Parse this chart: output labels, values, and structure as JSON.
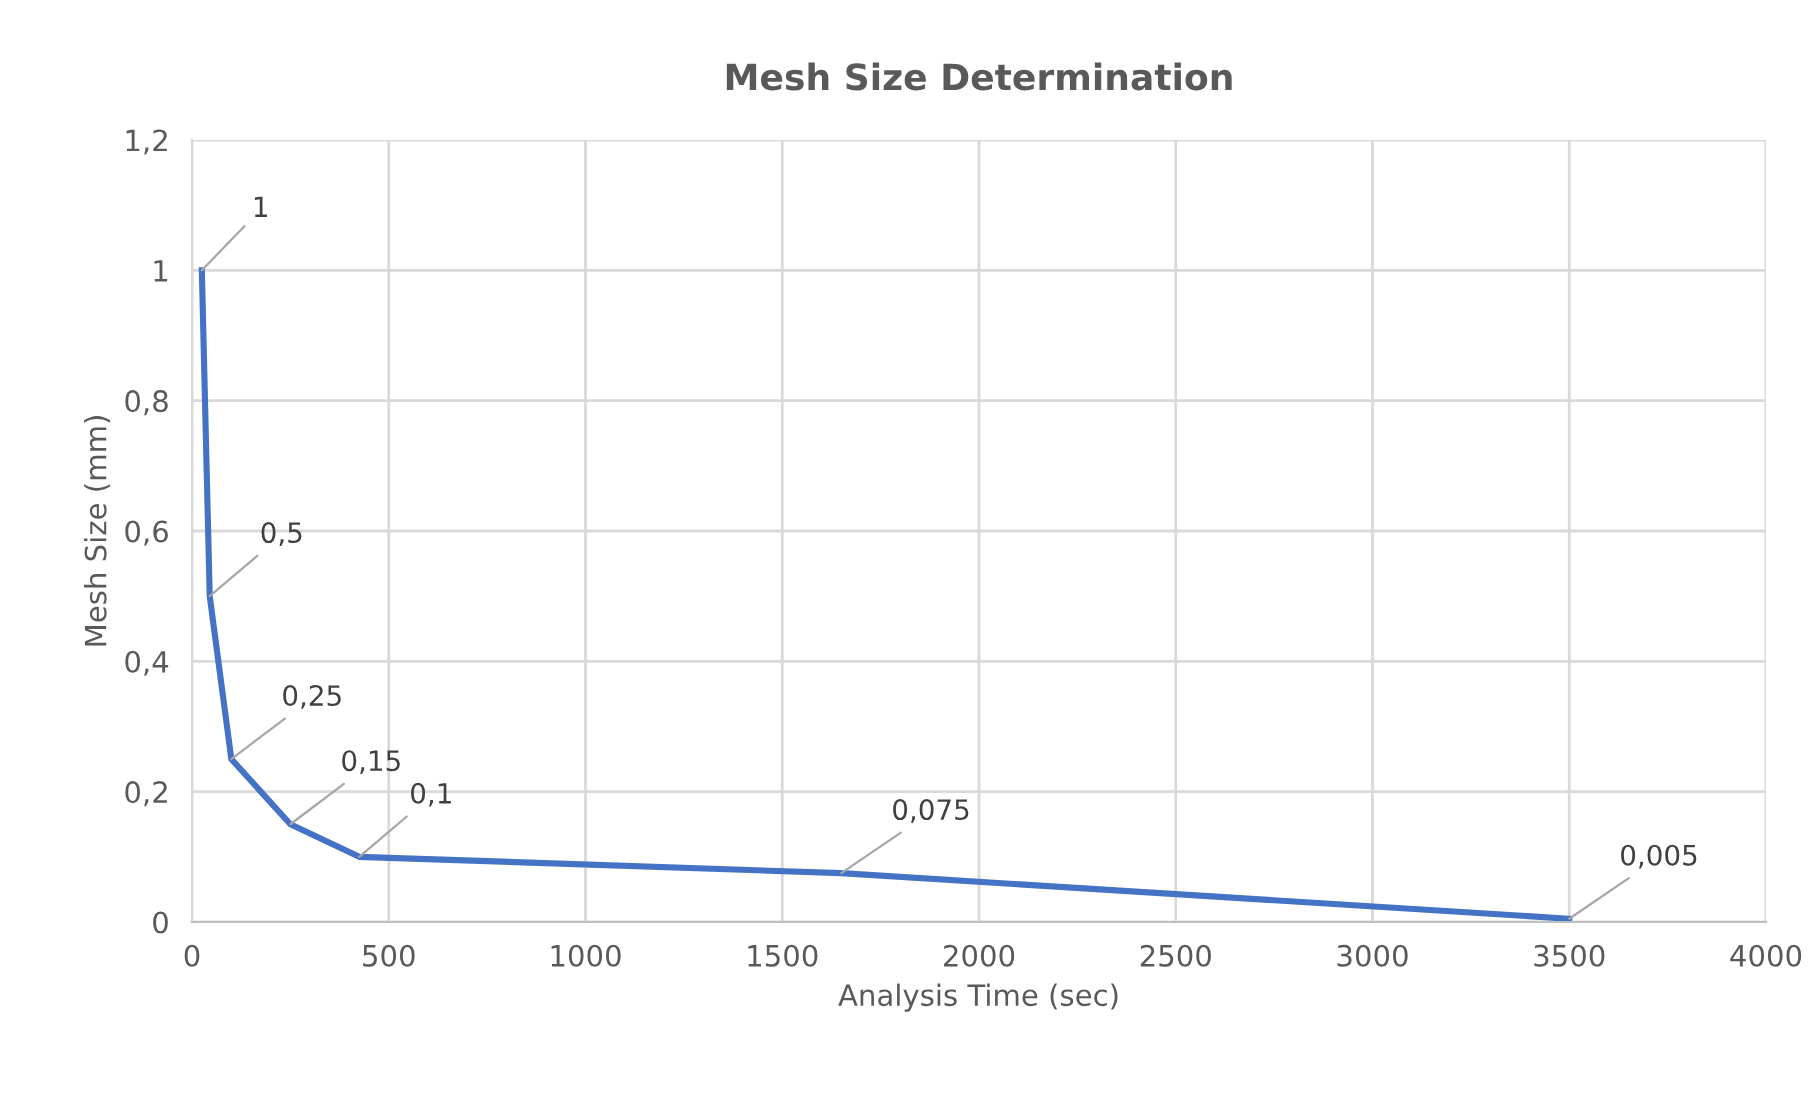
{
  "chart_data": {
    "type": "line",
    "title": "Mesh Size Determination",
    "xlabel": "Analysis Time (sec)",
    "ylabel": "Mesh Size (mm)",
    "x": [
      25,
      45,
      100,
      250,
      425,
      1650,
      3500
    ],
    "series": [
      {
        "color": "#4472c4",
        "values": [
          1,
          0.5,
          0.25,
          0.15,
          0.1,
          0.075,
          0.005
        ],
        "value_labels": [
          "1",
          "0,5",
          "0,25",
          "0,15",
          "0,1",
          "0,075",
          "0,005"
        ]
      }
    ],
    "xlim": [
      0,
      4000
    ],
    "xticks": [
      0,
      500,
      1000,
      1500,
      2000,
      2500,
      3000,
      3500,
      4000
    ],
    "ylim": [
      0,
      1.2
    ],
    "yticks": [
      0,
      {
        "value": 0.2,
        "label": "0,2"
      },
      {
        "value": 0.4,
        "label": "0,4"
      },
      {
        "value": 0.6,
        "label": "0,6"
      },
      {
        "value": 0.8,
        "label": "0,8"
      },
      {
        "value": 1,
        "label": "1"
      },
      {
        "value": 1.2,
        "label": "1,2"
      }
    ],
    "grid": true,
    "marker": "none",
    "line_style": "solid"
  }
}
